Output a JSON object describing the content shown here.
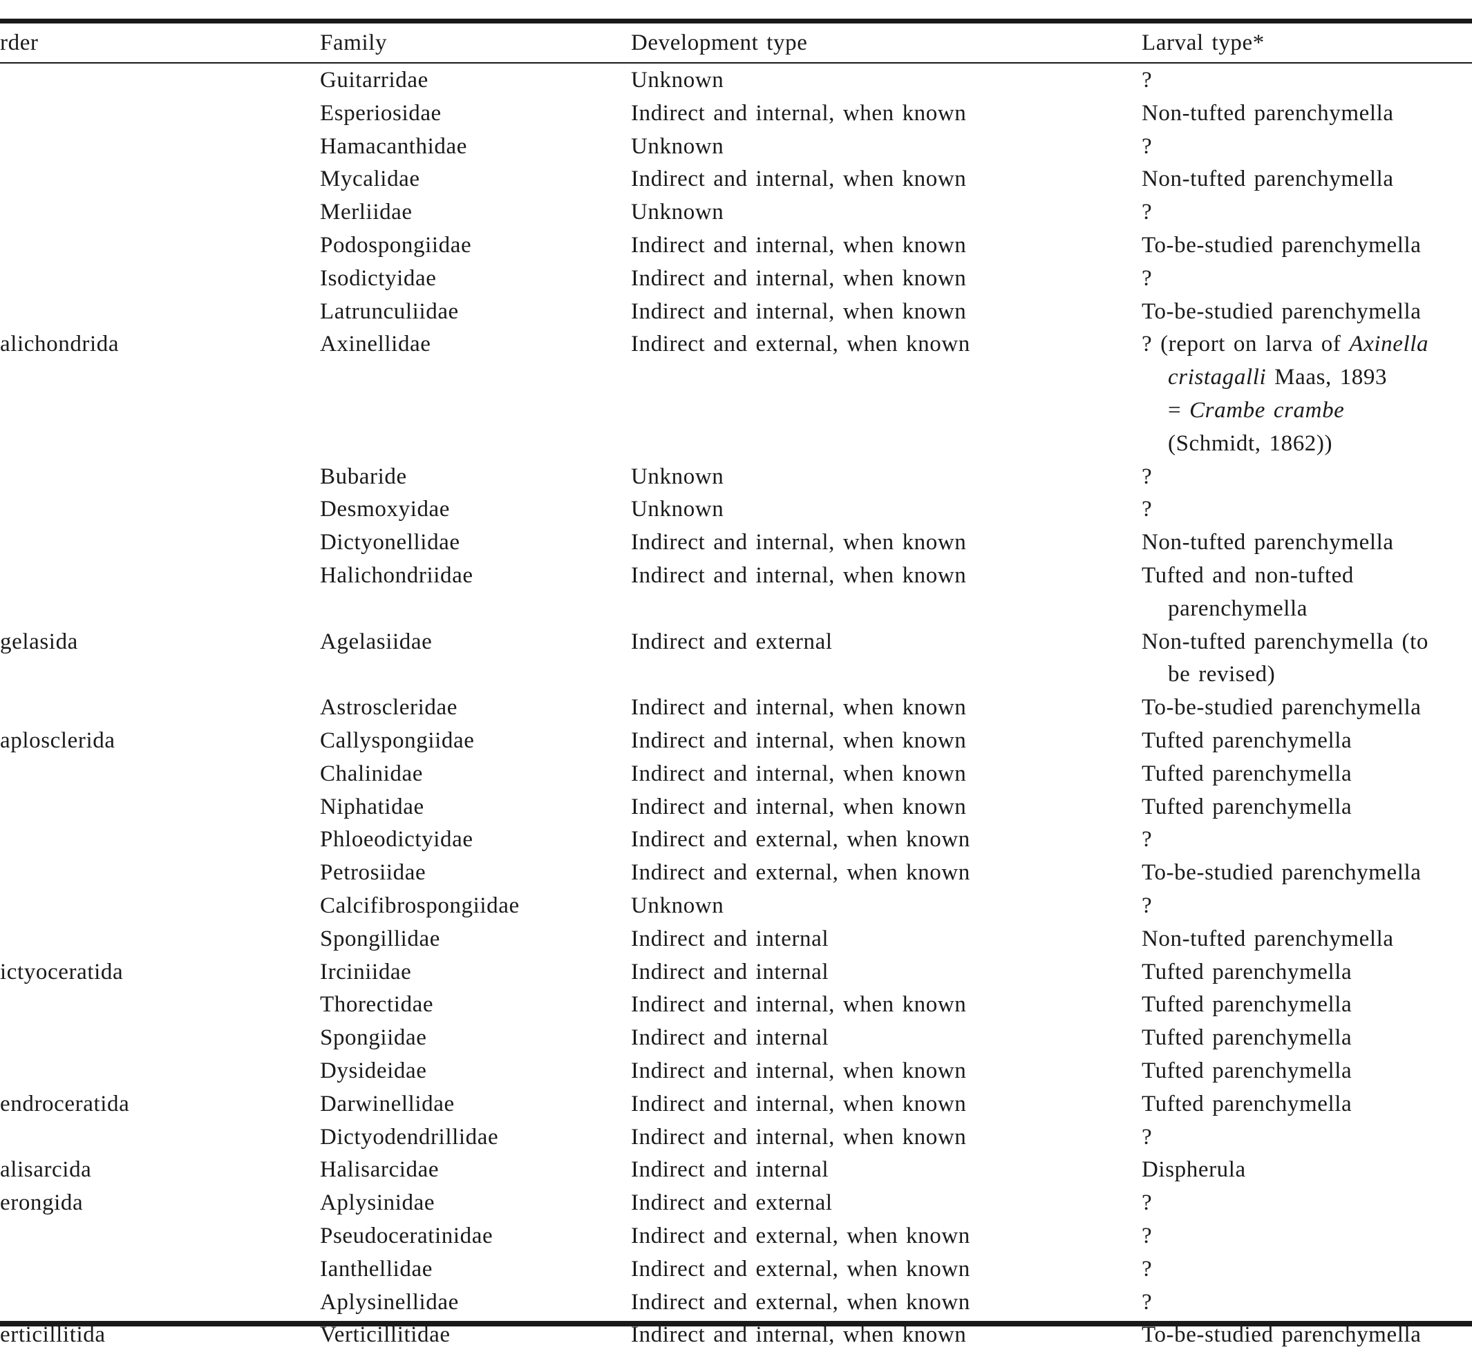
{
  "table": {
    "header": [
      "rder",
      "Family",
      "Development type",
      "Larval type*"
    ],
    "rows": [
      {
        "family": "Guitarridae",
        "development": "Unknown",
        "larval": [
          "?"
        ]
      },
      {
        "family": "Esperiosidae",
        "development": "Indirect and internal, when known",
        "larval": [
          "Non-tufted parenchymella"
        ]
      },
      {
        "family": "Hamacanthidae",
        "development": "Unknown",
        "larval": [
          "?"
        ]
      },
      {
        "family": "Mycalidae",
        "development": "Indirect and internal, when known",
        "larval": [
          "Non-tufted parenchymella"
        ]
      },
      {
        "family": "Merliidae",
        "development": "Unknown",
        "larval": [
          "?"
        ]
      },
      {
        "family": "Podospongiidae",
        "development": "Indirect and internal, when known",
        "larval": [
          "To-be-studied parenchymella"
        ]
      },
      {
        "family": "Isodictyidae",
        "development": "Indirect and internal, when known",
        "larval": [
          "?"
        ]
      },
      {
        "family": "Latrunculiidae",
        "development": "Indirect and internal, when known",
        "larval": [
          "To-be-studied parenchymella"
        ]
      },
      {
        "order": "alichondrida",
        "family": "Axinellidae",
        "development": "Indirect and external, when known",
        "larval": [
          [
            {
              "text": "? (report on larva of "
            },
            {
              "text": "Axinella",
              "italic": true
            }
          ],
          [
            {
              "text": "cristagalli",
              "italic": true
            },
            {
              "text": " Maas, 1893"
            }
          ],
          [
            {
              "text": "= "
            },
            {
              "text": "Crambe crambe",
              "italic": true
            }
          ],
          "(Schmidt, 1862))"
        ]
      },
      {
        "family": "Bubaride",
        "development": "Unknown",
        "larval": [
          "?"
        ]
      },
      {
        "family": "Desmoxyidae",
        "development": "Unknown",
        "larval": [
          "?"
        ]
      },
      {
        "family": "Dictyonellidae",
        "development": "Indirect and internal, when known",
        "larval": [
          "Non-tufted parenchymella"
        ]
      },
      {
        "family": "Halichondriidae",
        "development": "Indirect and internal, when known",
        "larval": [
          "Tufted and non-tufted",
          "parenchymella"
        ]
      },
      {
        "order": "gelasida",
        "family": "Agelasiidae",
        "development": "Indirect and external",
        "larval": [
          "Non-tufted parenchymella (to",
          "be revised)"
        ]
      },
      {
        "family": "Astroscleridae",
        "development": "Indirect and internal, when known",
        "larval": [
          "To-be-studied parenchymella"
        ]
      },
      {
        "order": "aplosclerida",
        "family": "Callyspongiidae",
        "development": "Indirect and internal, when known",
        "larval": [
          "Tufted parenchymella"
        ]
      },
      {
        "family": "Chalinidae",
        "development": "Indirect and internal, when known",
        "larval": [
          "Tufted parenchymella"
        ]
      },
      {
        "family": "Niphatidae",
        "development": "Indirect and internal, when known",
        "larval": [
          "Tufted parenchymella"
        ]
      },
      {
        "family": "Phloeodictyidae",
        "development": "Indirect and external, when known",
        "larval": [
          "?"
        ]
      },
      {
        "family": "Petrosiidae",
        "development": "Indirect and external, when known",
        "larval": [
          "To-be-studied parenchymella"
        ]
      },
      {
        "family": "Calcifibrospongiidae",
        "development": "Unknown",
        "larval": [
          "?"
        ]
      },
      {
        "family": "Spongillidae",
        "development": "Indirect and internal",
        "larval": [
          "Non-tufted parenchymella"
        ]
      },
      {
        "order": "ictyoceratida",
        "family": "Irciniidae",
        "development": "Indirect and internal",
        "larval": [
          "Tufted parenchymella"
        ]
      },
      {
        "family": "Thorectidae",
        "development": "Indirect and internal, when known",
        "larval": [
          "Tufted parenchymella"
        ]
      },
      {
        "family": "Spongiidae",
        "development": "Indirect and internal",
        "larval": [
          "Tufted parenchymella"
        ]
      },
      {
        "family": "Dysideidae",
        "development": "Indirect and internal, when known",
        "larval": [
          "Tufted parenchymella"
        ]
      },
      {
        "order": "endroceratida",
        "family": "Darwinellidae",
        "development": "Indirect and internal, when known",
        "larval": [
          "Tufted parenchymella"
        ]
      },
      {
        "family": "Dictyodendrillidae",
        "development": "Indirect and internal, when known",
        "larval": [
          "?"
        ]
      },
      {
        "order": "alisarcida",
        "family": "Halisarcidae",
        "development": "Indirect and internal",
        "larval": [
          "Dispherula"
        ]
      },
      {
        "order": "erongida",
        "family": "Aplysinidae",
        "development": "Indirect and external",
        "larval": [
          "?"
        ]
      },
      {
        "family": "Pseudoceratinidae",
        "development": "Indirect and external, when known",
        "larval": [
          "?"
        ]
      },
      {
        "family": "Ianthellidae",
        "development": "Indirect and external, when known",
        "larval": [
          "?"
        ]
      },
      {
        "family": "Aplysinellidae",
        "development": "Indirect and external, when known",
        "larval": [
          "?"
        ]
      },
      {
        "order": "erticillitida",
        "family": "Verticillitidae",
        "development": "Indirect and internal, when known",
        "larval": [
          "To-be-studied parenchymella"
        ]
      }
    ]
  }
}
